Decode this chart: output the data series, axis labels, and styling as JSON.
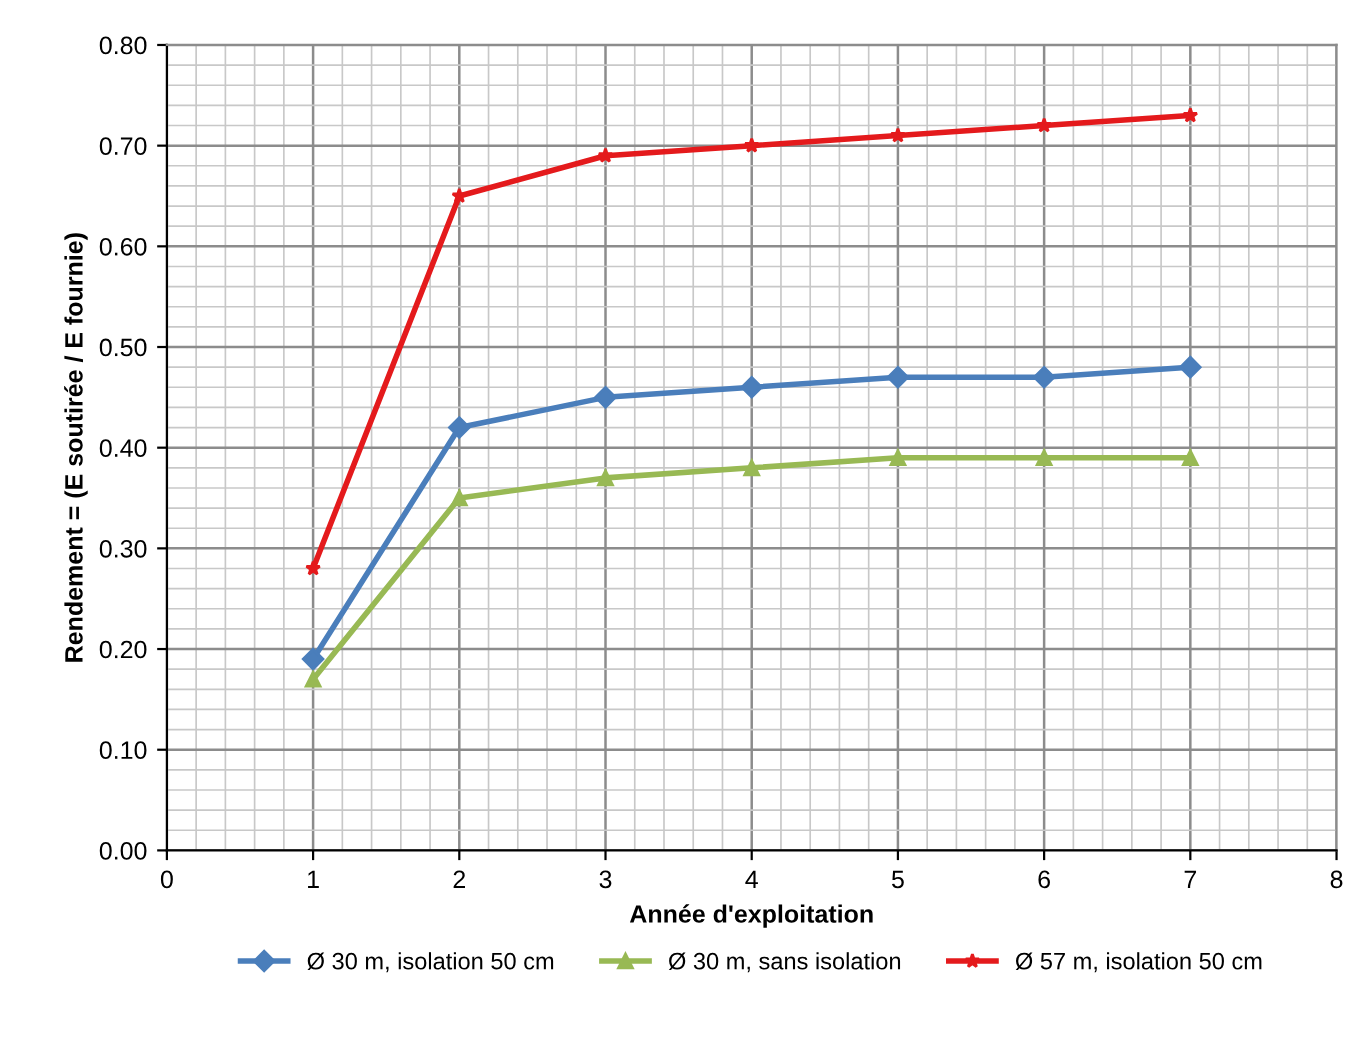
{
  "chart_data": {
    "type": "line",
    "xlabel": "Année d'exploitation",
    "ylabel": "Rendement = (E soutirée / E fournie)",
    "x": [
      1,
      2,
      3,
      4,
      5,
      6,
      7
    ],
    "series": [
      {
        "name": "Ø 30 m, isolation 50 cm",
        "color": "#4a7ebb",
        "marker": "diamond",
        "values": [
          0.19,
          0.42,
          0.45,
          0.46,
          0.47,
          0.47,
          0.48
        ]
      },
      {
        "name": "Ø 30 m, sans isolation",
        "color": "#98b954",
        "marker": "triangle",
        "values": [
          0.17,
          0.35,
          0.37,
          0.38,
          0.39,
          0.39,
          0.39
        ]
      },
      {
        "name": "Ø 57 m, isolation 50 cm",
        "color": "#e41a1c",
        "marker": "star",
        "values": [
          0.28,
          0.65,
          0.69,
          0.7,
          0.71,
          0.72,
          0.73
        ]
      }
    ],
    "xlim": [
      0,
      8
    ],
    "xticks": [
      0,
      1,
      2,
      3,
      4,
      5,
      6,
      7,
      8
    ],
    "ylim": [
      0,
      0.8
    ],
    "yticks": [
      {
        "value": 0,
        "label": "0.00"
      },
      {
        "value": 0.1,
        "label": "0.10"
      },
      {
        "value": 0.2,
        "label": "0.20"
      },
      {
        "value": 0.3,
        "label": "0.30"
      },
      {
        "value": 0.4,
        "label": "0.40"
      },
      {
        "value": 0.5,
        "label": "0.50"
      },
      {
        "value": 0.6,
        "label": "0.60"
      },
      {
        "value": 0.7,
        "label": "0.70"
      },
      {
        "value": 0.8,
        "label": "0.80"
      }
    ],
    "grid": true,
    "legend": "bottom",
    "line_style": "solid"
  }
}
